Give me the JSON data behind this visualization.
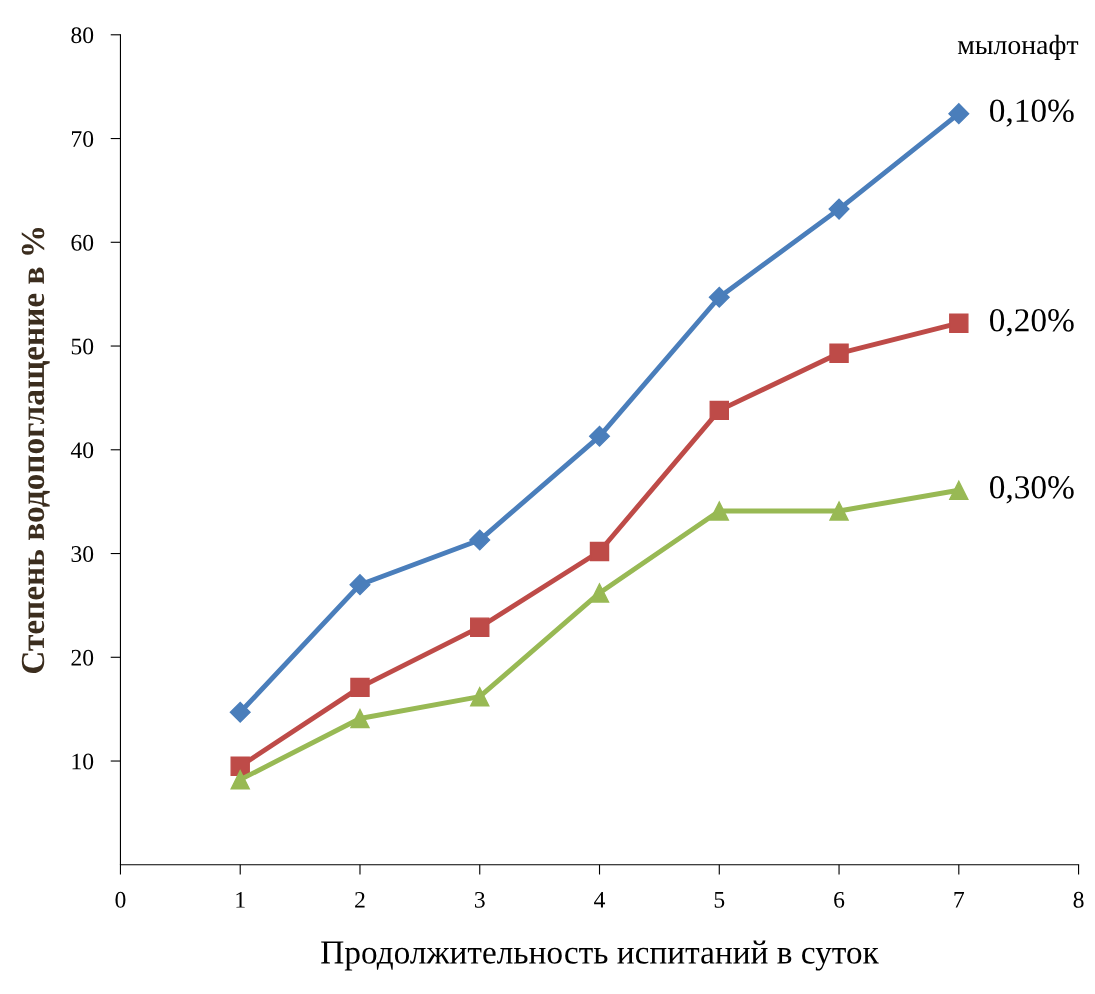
{
  "chart_data": {
    "type": "line",
    "xlabel": "Продолжительность испитаний в суток",
    "ylabel": "Степень водопоглащение в %",
    "legend_title": "мылонафт",
    "x": [
      1,
      2,
      3,
      4,
      5,
      6,
      7
    ],
    "series": [
      {
        "name": "0,10%",
        "color": "#4a7ebb",
        "marker": "diamond",
        "values": [
          14.7,
          27,
          31.3,
          41.3,
          54.7,
          63.2,
          72.4
        ]
      },
      {
        "name": "0,20%",
        "color": "#be4b48",
        "marker": "square",
        "values": [
          9.5,
          17.1,
          22.9,
          30.2,
          43.8,
          49.3,
          52.2
        ]
      },
      {
        "name": "0,30%",
        "color": "#98b954",
        "marker": "triangle",
        "values": [
          8.2,
          14.1,
          16.2,
          26.2,
          34.1,
          34.1,
          36.1
        ]
      }
    ],
    "xlim": [
      0,
      8
    ],
    "xticks": [
      0,
      1,
      2,
      3,
      4,
      5,
      6,
      7,
      8
    ],
    "ylim": [
      0,
      80
    ],
    "yticks": [
      10,
      20,
      30,
      40,
      50,
      60,
      70,
      80
    ],
    "grid": false,
    "legend": false
  }
}
